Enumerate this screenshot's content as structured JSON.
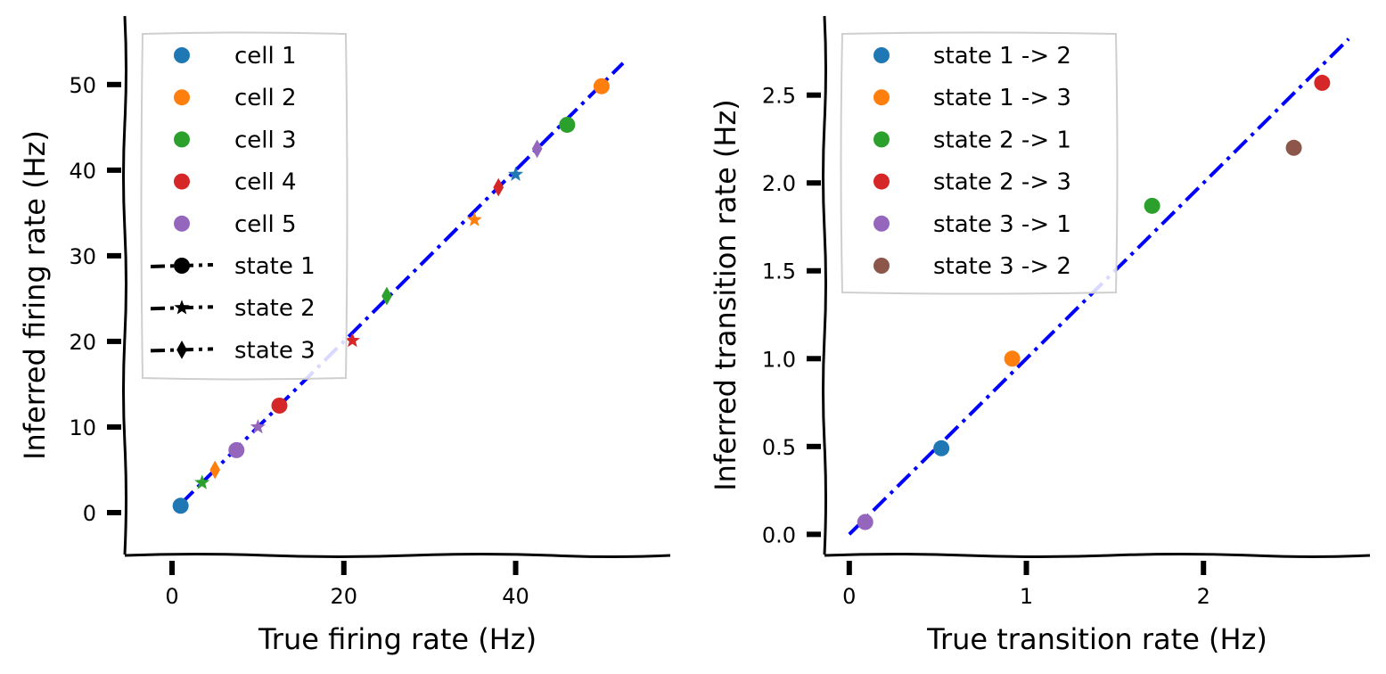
{
  "chart_data": [
    {
      "type": "scatter",
      "xlabel": "True firing rate (Hz)",
      "ylabel": "Inferred firing rate (Hz)",
      "xlim": [
        -5.5,
        58
      ],
      "ylim": [
        -5,
        58
      ],
      "xticks": [
        0,
        20,
        40
      ],
      "xtick_labels": [
        "0",
        "20",
        "40"
      ],
      "yticks": [
        0,
        10,
        20,
        30,
        40,
        50
      ],
      "ytick_labels": [
        "0",
        "10",
        "20",
        "30",
        "40",
        "50"
      ],
      "grid": false,
      "reference_line": {
        "style": "dashed",
        "color": "#0000ff",
        "x": [
          1,
          52.5
        ],
        "y": [
          1,
          52.5
        ]
      },
      "legend": {
        "placement": "top-left",
        "entries": [
          {
            "label": "cell 1",
            "color": "#1f77b4",
            "marker": "circle"
          },
          {
            "label": "cell 2",
            "color": "#ff7f0e",
            "marker": "circle"
          },
          {
            "label": "cell 3",
            "color": "#2ca02c",
            "marker": "circle"
          },
          {
            "label": "cell 4",
            "color": "#d62728",
            "marker": "circle"
          },
          {
            "label": "cell 5",
            "color": "#9467bd",
            "marker": "circle"
          },
          {
            "label": "state 1",
            "color": "#000000",
            "marker": "circle",
            "line": true
          },
          {
            "label": "state 2",
            "color": "#000000",
            "marker": "star",
            "line": true
          },
          {
            "label": "state 3",
            "color": "#000000",
            "marker": "diamond",
            "line": true
          }
        ]
      },
      "points": [
        {
          "x": 1.0,
          "y": 0.8,
          "color": "#1f77b4",
          "marker": "circle"
        },
        {
          "x": 50.0,
          "y": 49.8,
          "color": "#ff7f0e",
          "marker": "circle"
        },
        {
          "x": 46.0,
          "y": 45.3,
          "color": "#2ca02c",
          "marker": "circle"
        },
        {
          "x": 12.5,
          "y": 12.5,
          "color": "#d62728",
          "marker": "circle"
        },
        {
          "x": 7.5,
          "y": 7.3,
          "color": "#9467bd",
          "marker": "circle"
        },
        {
          "x": 40.0,
          "y": 39.5,
          "color": "#1f77b4",
          "marker": "star"
        },
        {
          "x": 35.2,
          "y": 34.2,
          "color": "#ff7f0e",
          "marker": "star"
        },
        {
          "x": 3.5,
          "y": 3.5,
          "color": "#2ca02c",
          "marker": "star"
        },
        {
          "x": 21.0,
          "y": 20.1,
          "color": "#d62728",
          "marker": "star"
        },
        {
          "x": 10.0,
          "y": 10.0,
          "color": "#9467bd",
          "marker": "star"
        },
        {
          "x": 5.0,
          "y": 5.0,
          "color": "#ff7f0e",
          "marker": "diamond"
        },
        {
          "x": 25.0,
          "y": 25.3,
          "color": "#2ca02c",
          "marker": "diamond"
        },
        {
          "x": 38.0,
          "y": 38.0,
          "color": "#d62728",
          "marker": "diamond"
        },
        {
          "x": 42.5,
          "y": 42.5,
          "color": "#9467bd",
          "marker": "diamond"
        }
      ]
    },
    {
      "type": "scatter",
      "xlabel": "True transition rate (Hz)",
      "ylabel": "Inferred transition rate (Hz)",
      "xlim": [
        -0.14,
        2.94
      ],
      "ylim": [
        -0.12,
        2.95
      ],
      "xticks": [
        0,
        1,
        2
      ],
      "xtick_labels": [
        "0",
        "1",
        "2"
      ],
      "yticks": [
        0.0,
        0.5,
        1.0,
        1.5,
        2.0,
        2.5
      ],
      "ytick_labels": [
        "0.0",
        "0.5",
        "1.0",
        "1.5",
        "2.0",
        "2.5"
      ],
      "grid": false,
      "reference_line": {
        "style": "dashed",
        "color": "#0000ff",
        "x": [
          0.0,
          2.82
        ],
        "y": [
          0.0,
          2.82
        ]
      },
      "legend": {
        "placement": "top-left",
        "entries": [
          {
            "label": "state 1 -> 2",
            "color": "#1f77b4",
            "marker": "circle"
          },
          {
            "label": "state 1 -> 3",
            "color": "#ff7f0e",
            "marker": "circle"
          },
          {
            "label": "state 2 -> 1",
            "color": "#2ca02c",
            "marker": "circle"
          },
          {
            "label": "state 2 -> 3",
            "color": "#d62728",
            "marker": "circle"
          },
          {
            "label": "state 3 -> 1",
            "color": "#9467bd",
            "marker": "circle"
          },
          {
            "label": "state 3 -> 2",
            "color": "#8c564b",
            "marker": "circle"
          }
        ]
      },
      "points": [
        {
          "x": 0.52,
          "y": 0.49,
          "color": "#1f77b4",
          "marker": "circle"
        },
        {
          "x": 0.92,
          "y": 1.0,
          "color": "#ff7f0e",
          "marker": "circle"
        },
        {
          "x": 1.71,
          "y": 1.87,
          "color": "#2ca02c",
          "marker": "circle"
        },
        {
          "x": 2.67,
          "y": 2.57,
          "color": "#d62728",
          "marker": "circle"
        },
        {
          "x": 0.09,
          "y": 0.07,
          "color": "#9467bd",
          "marker": "circle"
        },
        {
          "x": 2.51,
          "y": 2.2,
          "color": "#8c564b",
          "marker": "circle"
        }
      ]
    }
  ]
}
